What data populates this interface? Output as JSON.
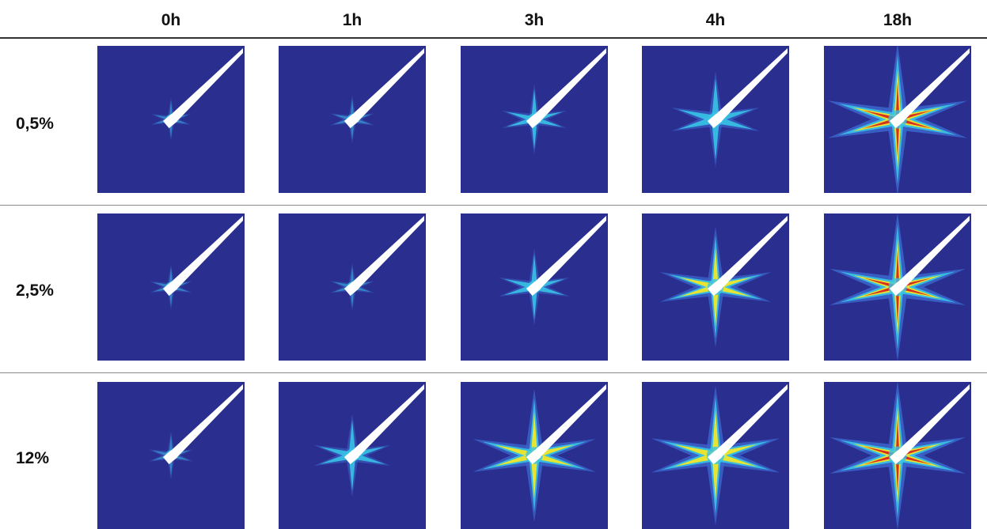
{
  "columns": [
    "0h",
    "1h",
    "3h",
    "4h",
    "18h"
  ],
  "rows": [
    "0,5%",
    "2,5%",
    "12%"
  ],
  "heatmap": {
    "description_levels": "relative spread intensity 0-1 per panel",
    "intensity": [
      [
        0.08,
        0.12,
        0.3,
        0.5,
        0.95
      ],
      [
        0.1,
        0.12,
        0.35,
        0.7,
        0.92
      ],
      [
        0.12,
        0.4,
        0.8,
        0.85,
        0.92
      ]
    ],
    "colors": {
      "background": "#2a2f8f",
      "low": "#3a63c9",
      "mid": "#37c3e6",
      "high": "#f0e62a",
      "peak": "#d7261e",
      "needle": "#ffffff"
    }
  }
}
